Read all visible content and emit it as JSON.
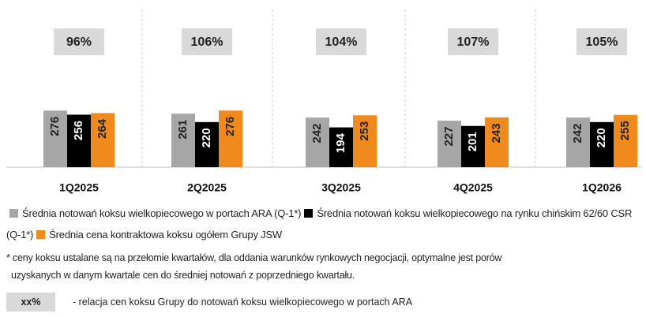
{
  "chart_data": {
    "type": "bar",
    "categories": [
      "1Q2025",
      "2Q2025",
      "3Q2025",
      "4Q2025",
      "1Q2026"
    ],
    "annotations": [
      "96%",
      "106%",
      "104%",
      "107%",
      "105%"
    ],
    "series": [
      {
        "name": "Średnia notowań koksu wielkopiecowego w portach ARA (Q-1*)",
        "color": "#a6a6a6",
        "values": [
          276,
          261,
          242,
          227,
          242
        ]
      },
      {
        "name": "Średnia notowań koksu wielkopiecowego na rynku chińskim 62/60 CSR (Q-1*)",
        "color": "#000000",
        "values": [
          256,
          220,
          194,
          201,
          220
        ]
      },
      {
        "name": "Średnia cena kontraktowa koksu ogółem Grupy JSW",
        "color": "#f08a1c",
        "values": [
          264,
          276,
          253,
          243,
          255
        ]
      }
    ],
    "footnote": [
      "* ceny koksu ustalane są na przełomie kwartałów, dla oddania warunków rynkowych negocjacji, optymalne jest porów",
      "uzyskanych w danym kwartale cen do średniej notowań z poprzedniego kwartału."
    ],
    "key": {
      "label": "xx%",
      "text": "- relacja cen koksu Grupy do notowań koksu wielkopiecowego w portach ARA"
    }
  }
}
